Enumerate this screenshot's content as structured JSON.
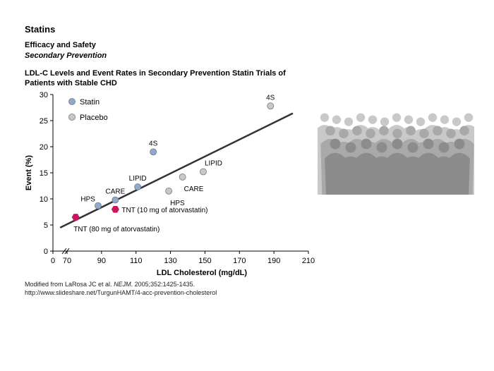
{
  "header": {
    "title": "Statins",
    "subtitle": "Efficacy and Safety",
    "subtitle2": "Secondary Prevention"
  },
  "chart_title_line1": "LDL-C Levels and Event Rates in Secondary Prevention Statin Trials of",
  "chart_title_line2": "Patients with Stable CHD",
  "source": {
    "line1_prefix": "Modified from LaRosa JC et al. ",
    "journal": "NEJM",
    "line1_suffix": ". 2005;352:1425-1435.",
    "line2": "http://www.slideshare.net/TurgunHAMT/4-acc-prevention-cholesterol"
  },
  "colors": {
    "statin": "#8fa9cf",
    "placebo": "#c8c8c8",
    "tnt": "#c8175e",
    "line": "#333333"
  },
  "chart_data": {
    "type": "scatter",
    "xlabel": "LDL Cholesterol (mg/dL)",
    "ylabel": "Event (%)",
    "x_ticks": [
      "0",
      "70",
      "90",
      "110",
      "130",
      "150",
      "170",
      "190",
      "210"
    ],
    "y_ticks": [
      "0",
      "5",
      "10",
      "15",
      "20",
      "25",
      "30"
    ],
    "xlim": [
      50,
      210
    ],
    "ylim": [
      0,
      30
    ],
    "axis_break": true,
    "legend": [
      {
        "name": "Statin",
        "color": "#8fa9cf"
      },
      {
        "name": "Placebo",
        "color": "#c8c8c8"
      }
    ],
    "points": [
      {
        "x": 88,
        "y": 8.7,
        "group": "statin",
        "label": "HPS",
        "label_pos": "top-left"
      },
      {
        "x": 98,
        "y": 9.8,
        "group": "statin",
        "label": "CARE",
        "label_pos": "top"
      },
      {
        "x": 111,
        "y": 12.3,
        "group": "statin",
        "label": "LIPID",
        "label_pos": "top"
      },
      {
        "x": 120,
        "y": 19.0,
        "group": "statin",
        "label": "4S",
        "label_pos": "top"
      },
      {
        "x": 129,
        "y": 11.5,
        "group": "placebo",
        "label": "HPS",
        "label_pos": "bottom-right"
      },
      {
        "x": 137,
        "y": 14.2,
        "group": "placebo",
        "label": "CARE",
        "label_pos": "bottom-right"
      },
      {
        "x": 149,
        "y": 15.2,
        "group": "placebo",
        "label": "LIPID",
        "label_pos": "top-right"
      },
      {
        "x": 188,
        "y": 27.8,
        "group": "placebo",
        "label": "4S",
        "label_pos": "top"
      },
      {
        "x": 98,
        "y": 8.0,
        "group": "tnt",
        "label": "TNT (10 mg of atorvastatin)",
        "label_pos": "right"
      },
      {
        "x": 75,
        "y": 6.5,
        "group": "tnt",
        "label": "TNT (80 mg of atorvastatin)",
        "label_pos": "bottom-right"
      }
    ],
    "trendline": {
      "x": [
        66,
        201
      ],
      "y": [
        4.5,
        26.4
      ]
    },
    "grid": false,
    "legend_position": "top-left"
  }
}
